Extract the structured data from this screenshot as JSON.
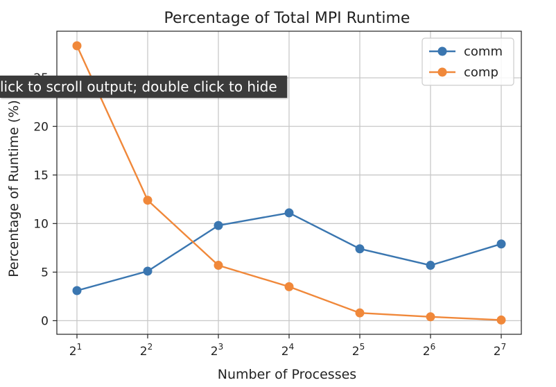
{
  "chart_data": {
    "type": "line",
    "title": "Percentage of Total MPI Runtime",
    "xlabel": "Number of Processes",
    "ylabel": "Percentage of Runtime (%)",
    "x": [
      2,
      4,
      8,
      16,
      32,
      64,
      128
    ],
    "xtick_labels": [
      {
        "base": "2",
        "exp": "1"
      },
      {
        "base": "2",
        "exp": "2"
      },
      {
        "base": "2",
        "exp": "3"
      },
      {
        "base": "2",
        "exp": "4"
      },
      {
        "base": "2",
        "exp": "5"
      },
      {
        "base": "2",
        "exp": "6"
      },
      {
        "base": "2",
        "exp": "7"
      }
    ],
    "yticks": [
      0,
      5,
      10,
      15,
      20,
      25
    ],
    "ylim": [
      -1.4,
      29.8
    ],
    "xscale": "log2",
    "grid": true,
    "legend_position": "top-right",
    "series": [
      {
        "name": "comm",
        "color": "#3a76b0",
        "values": [
          3.1,
          5.1,
          9.8,
          11.1,
          7.4,
          5.7,
          7.9
        ]
      },
      {
        "name": "comp",
        "color": "#f0883a",
        "values": [
          28.3,
          12.4,
          5.7,
          3.5,
          0.8,
          0.4,
          0.07
        ]
      }
    ]
  },
  "overlay": {
    "tooltip_text": "Click to scroll output; double click to hide"
  }
}
